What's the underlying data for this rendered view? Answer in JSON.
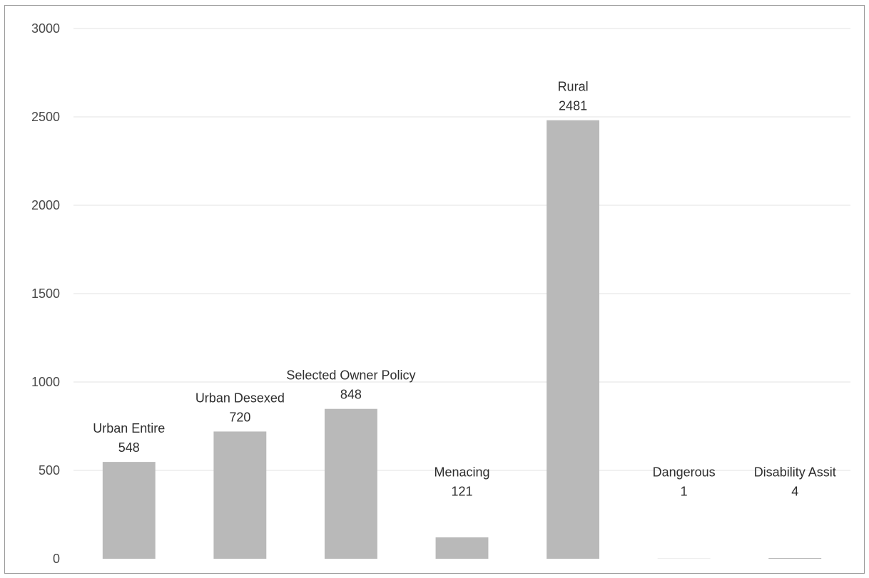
{
  "chart_data": {
    "type": "bar",
    "title": "",
    "xlabel": "",
    "ylabel": "",
    "ylim": [
      0,
      3000
    ],
    "yticks": [
      0,
      500,
      1000,
      1500,
      2000,
      2500,
      3000
    ],
    "grid": true,
    "legend": "none",
    "bar_color": "#b9b9b9",
    "grid_color": "#e3e3e3",
    "categories": [
      "Urban Entire",
      "Urban Desexed",
      "Selected Owner Policy",
      "Menacing",
      "Rural",
      "Dangerous",
      "Disability Assit"
    ],
    "values": [
      548,
      720,
      848,
      121,
      2481,
      1,
      4
    ],
    "value_labels": [
      "548",
      "720",
      "848",
      "121",
      "2481",
      "1",
      "4"
    ]
  }
}
